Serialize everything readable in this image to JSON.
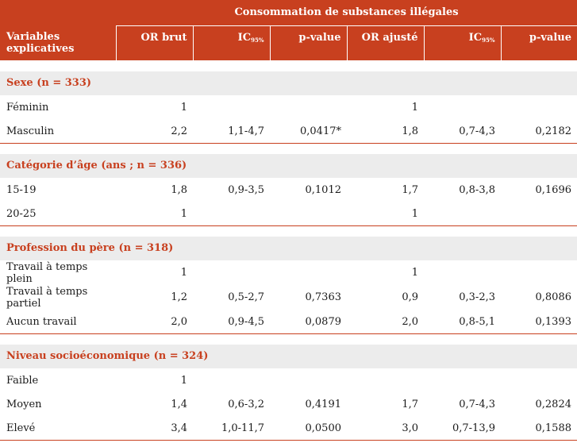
{
  "header": {
    "group_title": "Consommation de substances illégales",
    "col_label_line1": "Variables",
    "col_label_line2": "explicatives",
    "or_brut": "OR brut",
    "ic_base": "IC",
    "ic_sub": "95%",
    "p_value": "p-value",
    "or_ajuste": "OR ajusté"
  },
  "sections": [
    {
      "title": "Sexe (n = 333)",
      "rows": [
        {
          "label": "Féminin",
          "or_brut": "1",
          "ic1": "",
          "p1": "",
          "or_aj": "1",
          "ic2": "",
          "p2": ""
        },
        {
          "label": "Masculin",
          "or_brut": "2,2",
          "ic1": "1,1-4,7",
          "p1": "0,0417*",
          "or_aj": "1,8",
          "ic2": "0,7-4,3",
          "p2": "0,2182"
        }
      ]
    },
    {
      "title": "Catégorie d’âge (ans ; n = 336)",
      "rows": [
        {
          "label": "15-19",
          "or_brut": "1,8",
          "ic1": "0,9-3,5",
          "p1": "0,1012",
          "or_aj": "1,7",
          "ic2": "0,8-3,8",
          "p2": "0,1696"
        },
        {
          "label": "20-25",
          "or_brut": "1",
          "ic1": "",
          "p1": "",
          "or_aj": "1",
          "ic2": "",
          "p2": ""
        }
      ]
    },
    {
      "title": "Profession du père (n = 318)",
      "rows": [
        {
          "label": "Travail à temps plein",
          "or_brut": "1",
          "ic1": "",
          "p1": "",
          "or_aj": "1",
          "ic2": "",
          "p2": ""
        },
        {
          "label": "Travail à temps partiel",
          "or_brut": "1,2",
          "ic1": "0,5-2,7",
          "p1": "0,7363",
          "or_aj": "0,9",
          "ic2": "0,3-2,3",
          "p2": "0,8086"
        },
        {
          "label": "Aucun travail",
          "or_brut": "2,0",
          "ic1": "0,9-4,5",
          "p1": "0,0879",
          "or_aj": "2,0",
          "ic2": "0,8-5,1",
          "p2": "0,1393"
        }
      ]
    },
    {
      "title": "Niveau socioéconomique (n = 324)",
      "rows": [
        {
          "label": "Faible",
          "or_brut": "1",
          "ic1": "",
          "p1": "",
          "or_aj": "",
          "ic2": "",
          "p2": ""
        },
        {
          "label": "Moyen",
          "or_brut": "1,4",
          "ic1": "0,6-3,2",
          "p1": "0,4191",
          "or_aj": "1,7",
          "ic2": "0,7-4,3",
          "p2": "0,2824"
        },
        {
          "label": "Elevé",
          "or_brut": "3,4",
          "ic1": "1,0-11,7",
          "p1": "0,0500",
          "or_aj": "3,0",
          "ic2": "0,7-13,9",
          "p2": "0,1588"
        }
      ]
    }
  ],
  "colors": {
    "accent": "#c8401f",
    "section_bg": "#ececec"
  }
}
